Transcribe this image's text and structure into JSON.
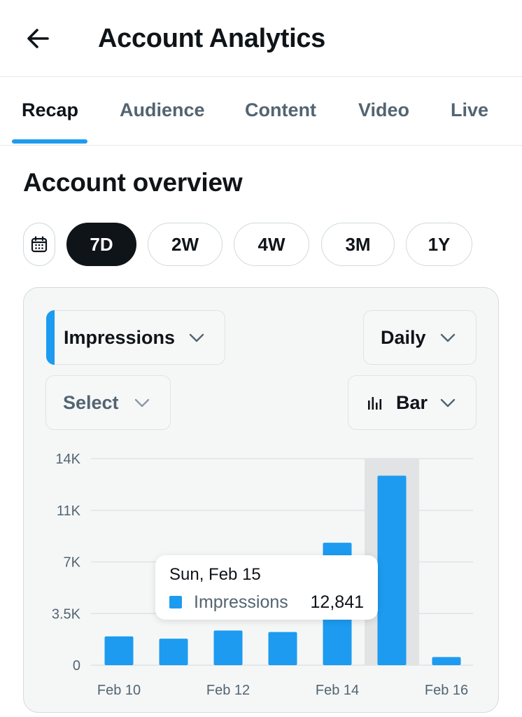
{
  "header": {
    "title": "Account Analytics",
    "back_icon": "arrow-left-icon"
  },
  "tabs": [
    {
      "label": "Recap",
      "active": true
    },
    {
      "label": "Audience",
      "active": false
    },
    {
      "label": "Content",
      "active": false
    },
    {
      "label": "Video",
      "active": false
    },
    {
      "label": "Live",
      "active": false
    }
  ],
  "overview": {
    "title": "Account overview",
    "calendar_icon": "calendar-icon",
    "ranges": [
      {
        "label": "7D",
        "selected": true
      },
      {
        "label": "2W",
        "selected": false
      },
      {
        "label": "4W",
        "selected": false
      },
      {
        "label": "3M",
        "selected": false
      },
      {
        "label": "1Y",
        "selected": false
      }
    ]
  },
  "controls": {
    "metric": "Impressions",
    "interval": "Daily",
    "compare": "Select",
    "chart_type": "Bar",
    "chart_type_icon": "bar-chart-icon"
  },
  "colors": {
    "accent": "#1d9bf0",
    "text": "#0f1419",
    "muted": "#536471",
    "highlight": "#e1e3e4"
  },
  "tooltip": {
    "date": "Sun, Feb 15",
    "series": "Impressions",
    "value": "12,841"
  },
  "chart_data": {
    "type": "bar",
    "categories": [
      "Feb 10",
      "Feb 11",
      "Feb 12",
      "Feb 13",
      "Feb 14",
      "Feb 15",
      "Feb 16"
    ],
    "x_tick_labels": [
      "Feb 10",
      "Feb 12",
      "Feb 14",
      "Feb 16"
    ],
    "series": [
      {
        "name": "Impressions",
        "color": "#1d9bf0",
        "values": [
          1950,
          1800,
          2350,
          2250,
          8300,
          12841,
          550
        ]
      }
    ],
    "y_ticks": [
      "0",
      "3.5K",
      "7K",
      "11K",
      "14K"
    ],
    "y_tick_values": [
      0,
      3500,
      7000,
      10500,
      14000
    ],
    "ylim": [
      0,
      14000
    ],
    "highlighted_category": "Feb 15",
    "grid": true
  }
}
